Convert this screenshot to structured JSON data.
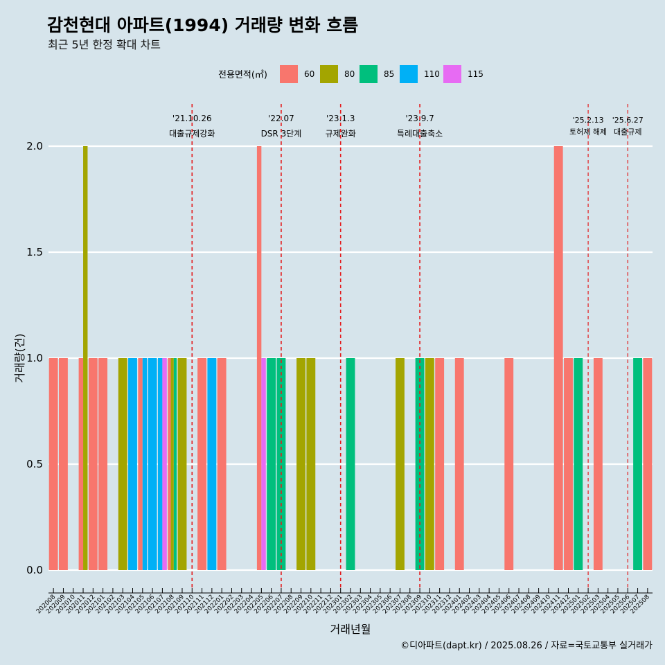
{
  "chart_data": {
    "type": "bar",
    "title": "감천현대 아파트(1994) 거래량 변화 흐름",
    "subtitle": "최근 5년 한정 확대 차트",
    "xlabel": "거래년월",
    "ylabel": "거래량(건)",
    "ylim": [
      0,
      2.2
    ],
    "yticks": [
      0,
      0.5,
      1,
      1.5,
      2
    ],
    "ytick_labels": [
      "0.0",
      "0.5",
      "1.0",
      "1.5",
      "2.0"
    ],
    "grid": true,
    "legend": {
      "title": "전용면적(㎡)",
      "placement": "top",
      "entries": [
        {
          "name": "60",
          "color": "#F8766D"
        },
        {
          "name": "80",
          "color": "#A3A500"
        },
        {
          "name": "85",
          "color": "#00BF7D"
        },
        {
          "name": "110",
          "color": "#00B0F6"
        },
        {
          "name": "115",
          "color": "#E76BF3"
        }
      ]
    },
    "categories": [
      "202008",
      "202009",
      "202010",
      "202011",
      "202012",
      "202101",
      "202102",
      "202103",
      "202104",
      "202105",
      "202106",
      "202107",
      "202108",
      "202109",
      "202110",
      "202111",
      "202112",
      "202201",
      "202202",
      "202203",
      "202204",
      "202205",
      "202206",
      "202207",
      "202208",
      "202209",
      "202210",
      "202211",
      "202212",
      "202301",
      "202302",
      "202303",
      "202304",
      "202305",
      "202306",
      "202307",
      "202308",
      "202309",
      "202310",
      "202311",
      "202312",
      "202401",
      "202402",
      "202403",
      "202404",
      "202405",
      "202406",
      "202407",
      "202408",
      "202409",
      "202410",
      "202411",
      "202412",
      "202501",
      "202502",
      "202503",
      "202504",
      "202505",
      "202506",
      "202507",
      "202508"
    ],
    "bars": [
      {
        "month": "202008",
        "series": [
          "60"
        ],
        "values": [
          1
        ]
      },
      {
        "month": "202009",
        "series": [
          "60"
        ],
        "values": [
          1
        ]
      },
      {
        "month": "202011",
        "series": [
          "60",
          "80"
        ],
        "values": [
          1,
          2
        ]
      },
      {
        "month": "202012",
        "series": [
          "60"
        ],
        "values": [
          1
        ]
      },
      {
        "month": "202101",
        "series": [
          "60"
        ],
        "values": [
          1
        ]
      },
      {
        "month": "202103",
        "series": [
          "80"
        ],
        "values": [
          1
        ]
      },
      {
        "month": "202104",
        "series": [
          "110"
        ],
        "values": [
          1
        ]
      },
      {
        "month": "202105",
        "series": [
          "60",
          "110"
        ],
        "values": [
          1,
          1
        ]
      },
      {
        "month": "202106",
        "series": [
          "110"
        ],
        "values": [
          1
        ]
      },
      {
        "month": "202107",
        "series": [
          "110",
          "115"
        ],
        "values": [
          1,
          1
        ]
      },
      {
        "month": "202108",
        "series": [
          "60",
          "80",
          "85"
        ],
        "values": [
          1,
          1,
          1
        ]
      },
      {
        "month": "202109",
        "series": [
          "80"
        ],
        "values": [
          1
        ]
      },
      {
        "month": "202111",
        "series": [
          "60"
        ],
        "values": [
          1
        ]
      },
      {
        "month": "202112",
        "series": [
          "110"
        ],
        "values": [
          1
        ]
      },
      {
        "month": "202201",
        "series": [
          "60"
        ],
        "values": [
          1
        ]
      },
      {
        "month": "202205",
        "series": [
          "60",
          "115"
        ],
        "values": [
          2,
          1
        ]
      },
      {
        "month": "202206",
        "series": [
          "85"
        ],
        "values": [
          1
        ]
      },
      {
        "month": "202207",
        "series": [
          "85"
        ],
        "values": [
          1
        ]
      },
      {
        "month": "202209",
        "series": [
          "80"
        ],
        "values": [
          1
        ]
      },
      {
        "month": "202210",
        "series": [
          "80"
        ],
        "values": [
          1
        ]
      },
      {
        "month": "202302",
        "series": [
          "85"
        ],
        "values": [
          1
        ]
      },
      {
        "month": "202307",
        "series": [
          "80"
        ],
        "values": [
          1
        ]
      },
      {
        "month": "202309",
        "series": [
          "85"
        ],
        "values": [
          1
        ]
      },
      {
        "month": "202310",
        "series": [
          "80"
        ],
        "values": [
          1
        ]
      },
      {
        "month": "202311",
        "series": [
          "60"
        ],
        "values": [
          1
        ]
      },
      {
        "month": "202401",
        "series": [
          "60"
        ],
        "values": [
          1
        ]
      },
      {
        "month": "202406",
        "series": [
          "60"
        ],
        "values": [
          1
        ]
      },
      {
        "month": "202411",
        "series": [
          "60"
        ],
        "values": [
          2
        ]
      },
      {
        "month": "202412",
        "series": [
          "60"
        ],
        "values": [
          1
        ]
      },
      {
        "month": "202501",
        "series": [
          "85"
        ],
        "values": [
          1
        ]
      },
      {
        "month": "202503",
        "series": [
          "60"
        ],
        "values": [
          1
        ]
      },
      {
        "month": "202507",
        "series": [
          "85"
        ],
        "values": [
          1
        ]
      },
      {
        "month": "202508",
        "series": [
          "60"
        ],
        "values": [
          1
        ]
      }
    ],
    "annotations": [
      {
        "month": "202110",
        "date": "'21.10.26",
        "label": "대출규제강화"
      },
      {
        "month": "202207",
        "date": "'22.07",
        "label": "DSR 3단계"
      },
      {
        "month": "202301",
        "date": "'23.1.3",
        "label": "규제완화"
      },
      {
        "month": "202309",
        "date": "'23.9.7",
        "label": "특례대출축소"
      },
      {
        "month": "202502",
        "date": "'25.2.13",
        "label": "토허제 해제"
      },
      {
        "month": "202506",
        "date": "'25.6.27",
        "label": "대출규제"
      }
    ],
    "caption": "©디아파트(dapt.kr) / 2025.08.26 / 자료=국토교통부 실거래가"
  }
}
